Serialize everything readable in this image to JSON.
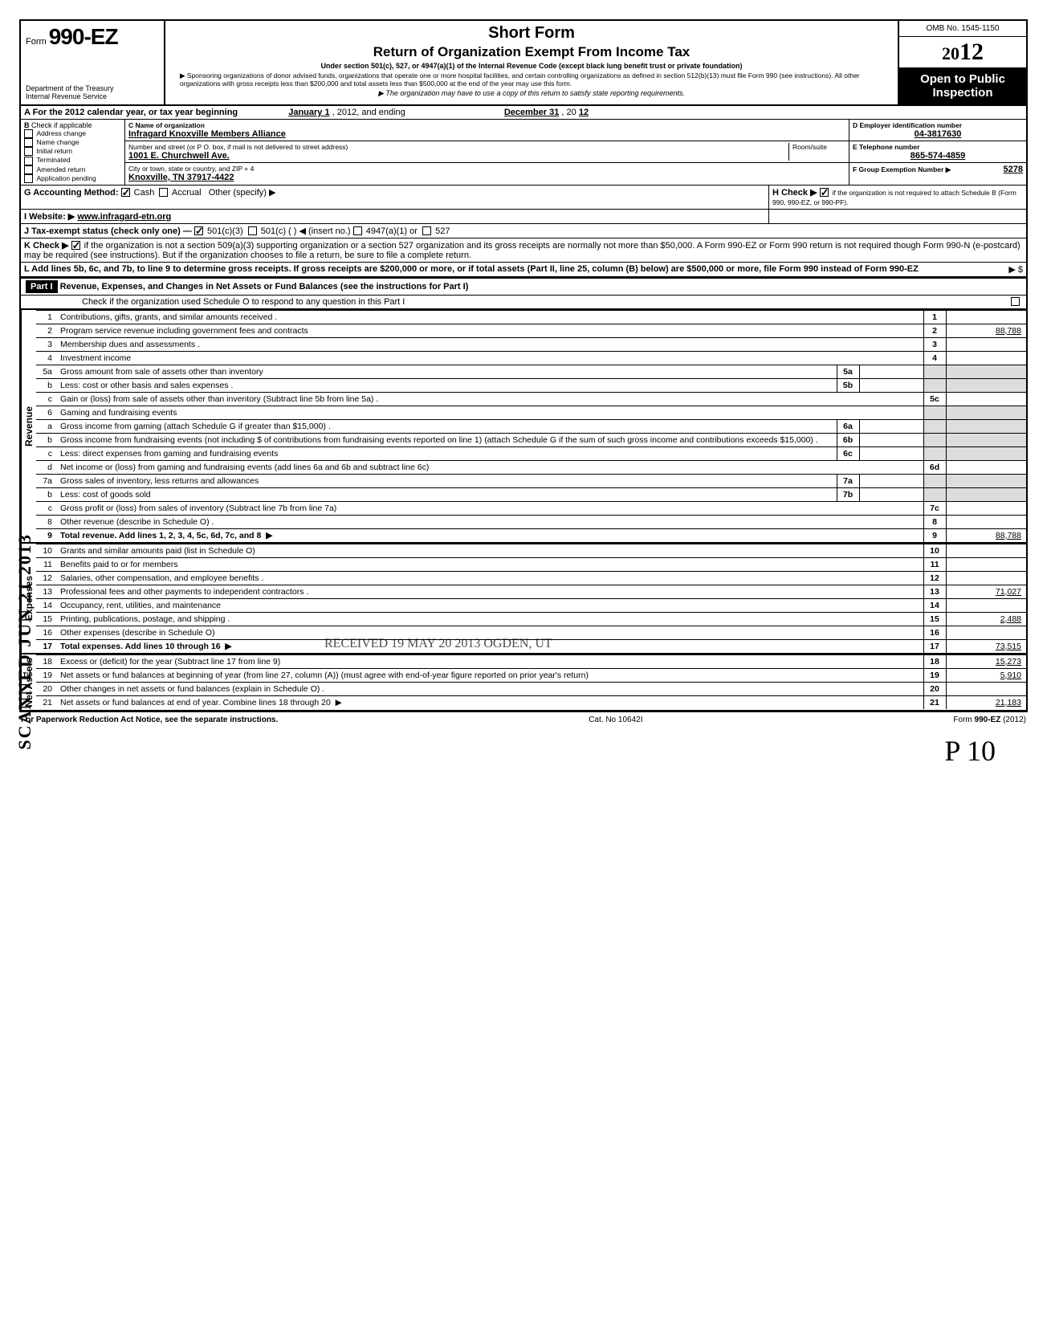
{
  "header": {
    "form_prefix": "Form",
    "form_number": "990-EZ",
    "short_form": "Short Form",
    "return_title": "Return of Organization Exempt From Income Tax",
    "under": "Under section 501(c), 527, or 4947(a)(1) of the Internal Revenue Code (except black lung benefit trust or private foundation)",
    "sponsor": "Sponsoring organizations of donor advised funds, organizations that operate one or more hospital facilities, and certain controlling organizations as defined in section 512(b)(13) must file Form 990 (see instructions). All other organizations with gross receipts less than $200,000 and total assets less than $500,000 at the end of the year may use this form.",
    "may_copy": "The organization may have to use a copy of this return to satisfy state reporting requirements.",
    "dept1": "Department of the Treasury",
    "dept2": "Internal Revenue Service",
    "omb": "OMB No. 1545-1150",
    "year_outline": "20",
    "year_bold": "12",
    "open": "Open to Public Inspection"
  },
  "line_a": {
    "label": "A For the 2012 calendar year, or tax year beginning",
    "begin": "January 1",
    "mid": ", 2012, and ending",
    "end": "December 31",
    "mid2": ", 20",
    "yy": "12"
  },
  "b": {
    "check_if": "Check if applicable",
    "opts": [
      "Address change",
      "Name change",
      "Initial return",
      "Terminated",
      "Amended return",
      "Application pending"
    ]
  },
  "c": {
    "name_lbl": "C  Name of organization",
    "name": "Infragard Knoxville Members Alliance",
    "addr_lbl": "Number and street (or P O. box, if mail is not delivered to street address)",
    "room_lbl": "Room/suite",
    "addr": "1001 E. Churchwell Ave.",
    "city_lbl": "City or town, state or country, and ZIP + 4",
    "city": "Knoxville, TN 37917-4422"
  },
  "d": {
    "lbl": "D Employer identification number",
    "val": "04-3817630"
  },
  "e": {
    "lbl": "E  Telephone number",
    "val": "865-574-4859"
  },
  "f": {
    "lbl": "F  Group Exemption Number ▶",
    "val": "5278"
  },
  "g": {
    "lbl": "G  Accounting Method:",
    "cash": "Cash",
    "accrual": "Accrual",
    "other": "Other (specify) ▶"
  },
  "h": {
    "lbl": "H  Check ▶",
    "txt": "if the organization is not required to attach Schedule B (Form 990, 990-EZ, or 990-PF)."
  },
  "i": {
    "lbl": "I   Website: ▶",
    "val": "www.infragard-etn.org"
  },
  "j": {
    "lbl": "J  Tax-exempt status (check only one) —",
    "a": "501(c)(3)",
    "b": "501(c) (",
    "c": ") ◀ (insert no.)",
    "d": "4947(a)(1) or",
    "e": "527"
  },
  "k": {
    "lbl": "K  Check ▶",
    "txt": "if the organization is not a section 509(a)(3) supporting organization or a section 527 organization and its gross receipts are normally not more than $50,000. A Form 990-EZ or Form 990 return is not required though Form 990-N (e-postcard) may be required (see instructions). But if the organization chooses to file a return, be sure to file a complete return."
  },
  "l": {
    "txt": "L  Add lines 5b, 6c, and 7b, to line 9 to determine gross receipts. If gross receipts are $200,000 or more, or if total assets (Part II, line 25, column (B) below) are $500,000 or more, file Form 990 instead of Form 990-EZ",
    "arrow": "▶  $"
  },
  "part1": {
    "label": "Part I",
    "title": "Revenue, Expenses, and Changes in Net Assets or Fund Balances (see the instructions for Part I)",
    "check": "Check if the organization used Schedule O to respond to any question in this Part I"
  },
  "sections": {
    "revenue": "Revenue",
    "expenses": "Expenses",
    "netassets": "Net Assets"
  },
  "lines": [
    {
      "n": "1",
      "t": "Contributions, gifts, grants, and similar amounts received .",
      "bn": "1",
      "v": ""
    },
    {
      "n": "2",
      "t": "Program service revenue including government fees and contracts",
      "bn": "2",
      "v": "88,788"
    },
    {
      "n": "3",
      "t": "Membership dues and assessments .",
      "bn": "3",
      "v": ""
    },
    {
      "n": "4",
      "t": "Investment income",
      "bn": "4",
      "v": ""
    },
    {
      "n": "5a",
      "t": "Gross amount from sale of assets other than inventory",
      "in": "5a"
    },
    {
      "n": "b",
      "t": "Less: cost or other basis and sales expenses .",
      "in": "5b"
    },
    {
      "n": "c",
      "t": "Gain or (loss) from sale of assets other than inventory (Subtract line 5b from line 5a) .",
      "bn": "5c",
      "v": ""
    },
    {
      "n": "6",
      "t": "Gaming and fundraising events"
    },
    {
      "n": "a",
      "t": "Gross income from gaming (attach Schedule G if greater than $15,000) .",
      "in": "6a"
    },
    {
      "n": "b",
      "t": "Gross income from fundraising events (not including $                    of contributions from fundraising events reported on line 1) (attach Schedule G if the sum of such gross income and contributions exceeds $15,000) .",
      "in": "6b"
    },
    {
      "n": "c",
      "t": "Less: direct expenses from gaming and fundraising events",
      "in": "6c"
    },
    {
      "n": "d",
      "t": "Net income or (loss) from gaming and fundraising events (add lines 6a and 6b and subtract line 6c)",
      "bn": "6d",
      "v": ""
    },
    {
      "n": "7a",
      "t": "Gross sales of inventory, less returns and allowances",
      "in": "7a"
    },
    {
      "n": "b",
      "t": "Less: cost of goods sold",
      "in": "7b"
    },
    {
      "n": "c",
      "t": "Gross profit or (loss) from sales of inventory (Subtract line 7b from line 7a)",
      "bn": "7c",
      "v": ""
    },
    {
      "n": "8",
      "t": "Other revenue (describe in Schedule O) .",
      "bn": "8",
      "v": ""
    },
    {
      "n": "9",
      "t": "Total revenue. Add lines 1, 2, 3, 4, 5c, 6d, 7c, and 8",
      "bn": "9",
      "v": "88,788",
      "bold": true,
      "arrow": true
    }
  ],
  "exp": [
    {
      "n": "10",
      "t": "Grants and similar amounts paid (list in Schedule O)",
      "bn": "10",
      "v": ""
    },
    {
      "n": "11",
      "t": "Benefits paid to or for members",
      "bn": "11",
      "v": ""
    },
    {
      "n": "12",
      "t": "Salaries, other compensation, and employee benefits .",
      "bn": "12",
      "v": ""
    },
    {
      "n": "13",
      "t": "Professional fees and other payments to independent contractors .",
      "bn": "13",
      "v": "71,027"
    },
    {
      "n": "14",
      "t": "Occupancy, rent, utilities, and maintenance",
      "bn": "14",
      "v": ""
    },
    {
      "n": "15",
      "t": "Printing, publications, postage, and shipping .",
      "bn": "15",
      "v": "2,488"
    },
    {
      "n": "16",
      "t": "Other expenses (describe in Schedule O)",
      "bn": "16",
      "v": ""
    },
    {
      "n": "17",
      "t": "Total expenses. Add lines 10 through 16",
      "bn": "17",
      "v": "73,515",
      "bold": true,
      "arrow": true
    }
  ],
  "na": [
    {
      "n": "18",
      "t": "Excess or (deficit) for the year (Subtract line 17 from line 9)",
      "bn": "18",
      "v": "15,273"
    },
    {
      "n": "19",
      "t": "Net assets or fund balances at beginning of year (from line 27, column (A)) (must agree with end-of-year figure reported on prior year's return)",
      "bn": "19",
      "v": "5,910"
    },
    {
      "n": "20",
      "t": "Other changes in net assets or fund balances (explain in Schedule O) .",
      "bn": "20",
      "v": ""
    },
    {
      "n": "21",
      "t": "Net assets or fund balances at end of year. Combine lines 18 through 20",
      "bn": "21",
      "v": "21,183",
      "arrow": true
    }
  ],
  "footer": {
    "left": "For Paperwork Reduction Act Notice, see the separate instructions.",
    "mid": "Cat. No  10642I",
    "right": "Form 990-EZ (2012)"
  },
  "scanned": "SCANNED JUN 21 2013",
  "stamps": "RECEIVED\n19\nMAY 20 2013\nOGDEN, UT",
  "sig": "P 10"
}
